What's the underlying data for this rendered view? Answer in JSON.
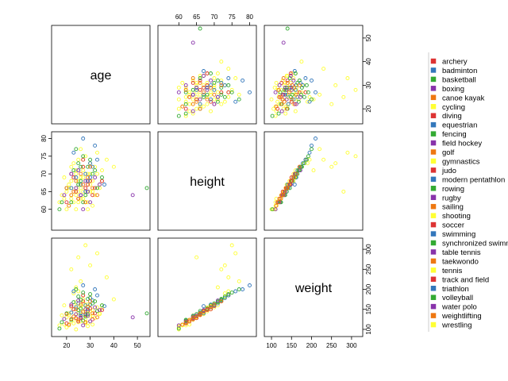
{
  "chart_data": {
    "type": "scatter",
    "variables": [
      "age",
      "height",
      "weight"
    ],
    "ranges": {
      "age": [
        15,
        54
      ],
      "height": [
        55,
        81
      ],
      "weight": [
        90,
        320
      ]
    },
    "ticks": {
      "age": [
        20,
        30,
        40,
        50
      ],
      "height": [
        60,
        65,
        70,
        75,
        80
      ],
      "weight": [
        100,
        150,
        200,
        250,
        300
      ]
    },
    "legend_position": "right",
    "legend": [
      {
        "name": "archery",
        "color": "#dd3333"
      },
      {
        "name": "badminton",
        "color": "#3377bb"
      },
      {
        "name": "basketball",
        "color": "#33aa33"
      },
      {
        "name": "boxing",
        "color": "#8833aa"
      },
      {
        "name": "canoe kayak",
        "color": "#ee7711"
      },
      {
        "name": "cycling",
        "color": "#ffff33"
      },
      {
        "name": "diving",
        "color": "#dd3333"
      },
      {
        "name": "equestrian",
        "color": "#3377bb"
      },
      {
        "name": "fencing",
        "color": "#33aa33"
      },
      {
        "name": "field hockey",
        "color": "#8833aa"
      },
      {
        "name": "golf",
        "color": "#ee7711"
      },
      {
        "name": "gymnastics",
        "color": "#ffff33"
      },
      {
        "name": "judo",
        "color": "#dd3333"
      },
      {
        "name": "modern pentathlon",
        "color": "#3377bb"
      },
      {
        "name": "rowing",
        "color": "#33aa33"
      },
      {
        "name": "rugby",
        "color": "#8833aa"
      },
      {
        "name": "sailing",
        "color": "#ee7711"
      },
      {
        "name": "shooting",
        "color": "#ffff33"
      },
      {
        "name": "soccer",
        "color": "#dd3333"
      },
      {
        "name": "swimming",
        "color": "#3377bb"
      },
      {
        "name": "synchronized swimming",
        "color": "#33aa33"
      },
      {
        "name": "table tennis",
        "color": "#8833aa"
      },
      {
        "name": "taekwondo",
        "color": "#ee7711"
      },
      {
        "name": "tennis",
        "color": "#ffff33"
      },
      {
        "name": "track and field",
        "color": "#dd3333"
      },
      {
        "name": "triathlon",
        "color": "#3377bb"
      },
      {
        "name": "volleyball",
        "color": "#33aa33"
      },
      {
        "name": "water polo",
        "color": "#8833aa"
      },
      {
        "name": "weightlifting",
        "color": "#ee7711"
      },
      {
        "name": "wrestling",
        "color": "#ffff33"
      }
    ],
    "points": [
      {
        "age": 24,
        "height": 64,
        "weight": 125,
        "color": "#ffff33"
      },
      {
        "age": 26,
        "height": 66,
        "weight": 135,
        "color": "#ffff33"
      },
      {
        "age": 28,
        "height": 68,
        "weight": 145,
        "color": "#ffff33"
      },
      {
        "age": 23,
        "height": 62,
        "weight": 115,
        "color": "#ffff33"
      },
      {
        "age": 30,
        "height": 70,
        "weight": 160,
        "color": "#ffff33"
      },
      {
        "age": 22,
        "height": 63,
        "weight": 120,
        "color": "#ffff33"
      },
      {
        "age": 27,
        "height": 65,
        "weight": 130,
        "color": "#ffff33"
      },
      {
        "age": 25,
        "height": 67,
        "weight": 140,
        "color": "#ffff33"
      },
      {
        "age": 29,
        "height": 69,
        "weight": 150,
        "color": "#ffff33"
      },
      {
        "age": 21,
        "height": 61,
        "weight": 110,
        "color": "#ffff33"
      },
      {
        "age": 32,
        "height": 72,
        "weight": 170,
        "color": "#ffff33"
      },
      {
        "age": 24,
        "height": 66,
        "weight": 138,
        "color": "#ffff33"
      },
      {
        "age": 26,
        "height": 64,
        "weight": 128,
        "color": "#ffff33"
      },
      {
        "age": 28,
        "height": 70,
        "weight": 162,
        "color": "#ffff33"
      },
      {
        "age": 20,
        "height": 60,
        "weight": 105,
        "color": "#ffff33"
      },
      {
        "age": 31,
        "height": 68,
        "weight": 148,
        "color": "#ffff33"
      },
      {
        "age": 23,
        "height": 65,
        "weight": 132,
        "color": "#ffff33"
      },
      {
        "age": 27,
        "height": 71,
        "weight": 165,
        "color": "#ffff33"
      },
      {
        "age": 25,
        "height": 62,
        "weight": 118,
        "color": "#ffff33"
      },
      {
        "age": 29,
        "height": 67,
        "weight": 142,
        "color": "#ffff33"
      },
      {
        "age": 22,
        "height": 68,
        "weight": 155,
        "color": "#ffff33"
      },
      {
        "age": 34,
        "height": 66,
        "weight": 140,
        "color": "#ffff33"
      },
      {
        "age": 19,
        "height": 63,
        "weight": 112,
        "color": "#ffff33"
      },
      {
        "age": 30,
        "height": 73,
        "weight": 180,
        "color": "#ffff33"
      },
      {
        "age": 26,
        "height": 69,
        "weight": 158,
        "color": "#ffff33"
      },
      {
        "age": 24,
        "height": 71,
        "weight": 168,
        "color": "#ffff33"
      },
      {
        "age": 28,
        "height": 64,
        "weight": 126,
        "color": "#ffff33"
      },
      {
        "age": 33,
        "height": 70,
        "weight": 155,
        "color": "#ffff33"
      },
      {
        "age": 21,
        "height": 66,
        "weight": 136,
        "color": "#ffff33"
      },
      {
        "age": 27,
        "height": 72,
        "weight": 175,
        "color": "#ffff33"
      },
      {
        "age": 25,
        "height": 74,
        "weight": 195,
        "color": "#ffff33"
      },
      {
        "age": 29,
        "height": 62,
        "weight": 116,
        "color": "#ffff33"
      },
      {
        "age": 23,
        "height": 69,
        "weight": 150,
        "color": "#ffff33"
      },
      {
        "age": 31,
        "height": 65,
        "weight": 134,
        "color": "#ffff33"
      },
      {
        "age": 26,
        "height": 67,
        "weight": 144,
        "color": "#ffff33"
      },
      {
        "age": 35,
        "height": 68,
        "weight": 152,
        "color": "#ffff33"
      },
      {
        "age": 22,
        "height": 64,
        "weight": 124,
        "color": "#ffff33"
      },
      {
        "age": 28,
        "height": 66,
        "weight": 138,
        "color": "#ffff33"
      },
      {
        "age": 24,
        "height": 70,
        "weight": 158,
        "color": "#ffff33"
      },
      {
        "age": 30,
        "height": 67,
        "weight": 146,
        "color": "#ffff33"
      },
      {
        "age": 20,
        "height": 65,
        "weight": 130,
        "color": "#ffff33"
      },
      {
        "age": 27,
        "height": 63,
        "weight": 122,
        "color": "#ffff33"
      },
      {
        "age": 25,
        "height": 65,
        "weight": 280,
        "color": "#ffff33"
      },
      {
        "age": 28,
        "height": 75,
        "weight": 310,
        "color": "#ffff33"
      },
      {
        "age": 33,
        "height": 76,
        "weight": 290,
        "color": "#ffff33"
      },
      {
        "age": 26,
        "height": 77,
        "weight": 220,
        "color": "#ffff33"
      },
      {
        "age": 37,
        "height": 74,
        "weight": 230,
        "color": "#ffff33"
      },
      {
        "age": 22,
        "height": 72,
        "weight": 250,
        "color": "#ffff33"
      },
      {
        "age": 30,
        "height": 73,
        "weight": 260,
        "color": "#ffff33"
      },
      {
        "age": 24,
        "height": 71,
        "weight": 205,
        "color": "#ffff33"
      },
      {
        "age": 40,
        "height": 72,
        "weight": 175,
        "color": "#ffff33"
      },
      {
        "age": 18,
        "height": 64,
        "weight": 135,
        "color": "#ffff33"
      },
      {
        "age": 29,
        "height": 60,
        "weight": 108,
        "color": "#ffff33"
      },
      {
        "age": 31,
        "height": 61,
        "weight": 112,
        "color": "#ffff33"
      },
      {
        "age": 19,
        "height": 69,
        "weight": 160,
        "color": "#ffff33"
      },
      {
        "age": 27,
        "height": 74,
        "weight": 185,
        "color": "#ffff33"
      },
      {
        "age": 23,
        "height": 73,
        "weight": 190,
        "color": "#ffff33"
      },
      {
        "age": 35,
        "height": 71,
        "weight": 160,
        "color": "#ffff33"
      },
      {
        "age": 25,
        "height": 68,
        "weight": 148,
        "color": "#ffff33"
      },
      {
        "age": 21,
        "height": 67,
        "weight": 140,
        "color": "#ffff33"
      },
      {
        "age": 28,
        "height": 62,
        "weight": 116,
        "color": "#ffff33"
      },
      {
        "age": 32,
        "height": 64,
        "weight": 128,
        "color": "#ffff33"
      },
      {
        "age": 24,
        "height": 60,
        "weight": 100,
        "color": "#ffff33"
      },
      {
        "age": 26,
        "height": 63,
        "weight": 120,
        "color": "#ffff33"
      },
      {
        "age": 30,
        "height": 65,
        "weight": 132,
        "color": "#ffff33"
      },
      {
        "age": 22,
        "height": 66,
        "weight": 142,
        "color": "#ffff33"
      },
      {
        "age": 34,
        "height": 67,
        "weight": 138,
        "color": "#ffff33"
      },
      {
        "age": 27,
        "height": 69,
        "weight": 154,
        "color": "#ffff33"
      },
      {
        "age": 29,
        "height": 70,
        "weight": 162,
        "color": "#ffff33"
      },
      {
        "age": 17,
        "height": 62,
        "weight": 110,
        "color": "#ffff33"
      },
      {
        "age": 28,
        "height": 66,
        "weight": 136,
        "color": "#dd3333"
      },
      {
        "age": 26,
        "height": 64,
        "weight": 130,
        "color": "#dd3333"
      },
      {
        "age": 30,
        "height": 68,
        "weight": 152,
        "color": "#dd3333"
      },
      {
        "age": 24,
        "height": 65,
        "weight": 128,
        "color": "#dd3333"
      },
      {
        "age": 32,
        "height": 66,
        "weight": 140,
        "color": "#dd3333"
      },
      {
        "age": 22,
        "height": 70,
        "weight": 158,
        "color": "#dd3333"
      },
      {
        "age": 27,
        "height": 72,
        "weight": 170,
        "color": "#dd3333"
      },
      {
        "age": 25,
        "height": 63,
        "weight": 120,
        "color": "#dd3333"
      },
      {
        "age": 29,
        "height": 67,
        "weight": 146,
        "color": "#dd3333"
      },
      {
        "age": 23,
        "height": 69,
        "weight": 150,
        "color": "#dd3333"
      },
      {
        "age": 31,
        "height": 64,
        "weight": 125,
        "color": "#dd3333"
      },
      {
        "age": 35,
        "height": 68,
        "weight": 148,
        "color": "#dd3333"
      },
      {
        "age": 20,
        "height": 62,
        "weight": 115,
        "color": "#dd3333"
      },
      {
        "age": 27,
        "height": 74,
        "weight": 185,
        "color": "#dd3333"
      },
      {
        "age": 26,
        "height": 67,
        "weight": 140,
        "color": "#3377bb"
      },
      {
        "age": 28,
        "height": 70,
        "weight": 160,
        "color": "#3377bb"
      },
      {
        "age": 30,
        "height": 73,
        "weight": 178,
        "color": "#3377bb"
      },
      {
        "age": 24,
        "height": 69,
        "weight": 155,
        "color": "#3377bb"
      },
      {
        "age": 32,
        "height": 78,
        "weight": 200,
        "color": "#3377bb"
      },
      {
        "age": 27,
        "height": 80,
        "weight": 210,
        "color": "#3377bb"
      },
      {
        "age": 25,
        "height": 71,
        "weight": 165,
        "color": "#3377bb"
      },
      {
        "age": 29,
        "height": 68,
        "weight": 150,
        "color": "#3377bb"
      },
      {
        "age": 33,
        "height": 74,
        "weight": 185,
        "color": "#3377bb"
      },
      {
        "age": 22,
        "height": 66,
        "weight": 142,
        "color": "#3377bb"
      },
      {
        "age": 31,
        "height": 72,
        "weight": 172,
        "color": "#3377bb"
      },
      {
        "age": 26,
        "height": 64,
        "weight": 134,
        "color": "#3377bb"
      },
      {
        "age": 36,
        "height": 67,
        "weight": 158,
        "color": "#3377bb"
      },
      {
        "age": 23,
        "height": 76,
        "weight": 195,
        "color": "#3377bb"
      },
      {
        "age": 28,
        "height": 65,
        "weight": 138,
        "color": "#3377bb"
      },
      {
        "age": 30,
        "height": 69,
        "weight": 162,
        "color": "#3377bb"
      },
      {
        "age": 25,
        "height": 73,
        "weight": 182,
        "color": "#33aa33"
      },
      {
        "age": 27,
        "height": 75,
        "weight": 192,
        "color": "#33aa33"
      },
      {
        "age": 29,
        "height": 72,
        "weight": 176,
        "color": "#33aa33"
      },
      {
        "age": 31,
        "height": 70,
        "weight": 165,
        "color": "#33aa33"
      },
      {
        "age": 24,
        "height": 77,
        "weight": 200,
        "color": "#33aa33"
      },
      {
        "age": 26,
        "height": 68,
        "weight": 152,
        "color": "#33aa33"
      },
      {
        "age": 33,
        "height": 66,
        "weight": 146,
        "color": "#33aa33"
      },
      {
        "age": 28,
        "height": 64,
        "weight": 132,
        "color": "#33aa33"
      },
      {
        "age": 22,
        "height": 62,
        "weight": 124,
        "color": "#33aa33"
      },
      {
        "age": 30,
        "height": 74,
        "weight": 188,
        "color": "#33aa33"
      },
      {
        "age": 20,
        "height": 66,
        "weight": 140,
        "color": "#33aa33"
      },
      {
        "age": 35,
        "height": 69,
        "weight": 160,
        "color": "#33aa33"
      },
      {
        "age": 17,
        "height": 60,
        "weight": 102,
        "color": "#33aa33"
      },
      {
        "age": 25,
        "height": 67,
        "weight": 148,
        "color": "#33aa33"
      },
      {
        "age": 27,
        "height": 62,
        "weight": 122,
        "color": "#33aa33"
      },
      {
        "age": 29,
        "height": 65,
        "weight": 138,
        "color": "#33aa33"
      },
      {
        "age": 23,
        "height": 71,
        "weight": 168,
        "color": "#33aa33"
      },
      {
        "age": 32,
        "height": 71,
        "weight": 170,
        "color": "#33aa33"
      },
      {
        "age": 26,
        "height": 72,
        "weight": 174,
        "color": "#33aa33"
      },
      {
        "age": 18,
        "height": 62,
        "weight": 118,
        "color": "#33aa33"
      },
      {
        "age": 54,
        "height": 66,
        "weight": 140,
        "color": "#33aa33"
      },
      {
        "age": 26,
        "height": 64,
        "weight": 128,
        "color": "#8833aa"
      },
      {
        "age": 28,
        "height": 68,
        "weight": 150,
        "color": "#8833aa"
      },
      {
        "age": 24,
        "height": 66,
        "weight": 138,
        "color": "#8833aa"
      },
      {
        "age": 30,
        "height": 62,
        "weight": 120,
        "color": "#8833aa"
      },
      {
        "age": 22,
        "height": 70,
        "weight": 162,
        "color": "#8833aa"
      },
      {
        "age": 32,
        "height": 69,
        "weight": 155,
        "color": "#8833aa"
      },
      {
        "age": 19,
        "height": 64,
        "weight": 126,
        "color": "#8833aa"
      },
      {
        "age": 34,
        "height": 67,
        "weight": 148,
        "color": "#8833aa"
      },
      {
        "age": 25,
        "height": 71,
        "weight": 172,
        "color": "#8833aa"
      },
      {
        "age": 48,
        "height": 64,
        "weight": 130,
        "color": "#8833aa"
      },
      {
        "age": 27,
        "height": 60,
        "weight": 110,
        "color": "#8833aa"
      },
      {
        "age": 29,
        "height": 65,
        "weight": 134,
        "color": "#8833aa"
      },
      {
        "age": 25,
        "height": 63,
        "weight": 124,
        "color": "#ee7711"
      },
      {
        "age": 27,
        "height": 67,
        "weight": 144,
        "color": "#ee7711"
      },
      {
        "age": 23,
        "height": 65,
        "weight": 132,
        "color": "#ee7711"
      },
      {
        "age": 29,
        "height": 69,
        "weight": 156,
        "color": "#ee7711"
      },
      {
        "age": 31,
        "height": 66,
        "weight": 140,
        "color": "#ee7711"
      },
      {
        "age": 21,
        "height": 61,
        "weight": 112,
        "color": "#ee7711"
      },
      {
        "age": 26,
        "height": 70,
        "weight": 162,
        "color": "#ee7711"
      },
      {
        "age": 33,
        "height": 64,
        "weight": 130,
        "color": "#ee7711"
      },
      {
        "age": 24,
        "height": 68,
        "weight": 150,
        "color": "#ee7711"
      },
      {
        "age": 28,
        "height": 62,
        "weight": 118,
        "color": "#ee7711"
      },
      {
        "age": 20,
        "height": 66,
        "weight": 138,
        "color": "#ee7711"
      },
      {
        "age": 30,
        "height": 72,
        "weight": 170,
        "color": "#ee7711"
      },
      {
        "age": 22,
        "height": 64,
        "weight": 126,
        "color": "#ee7711"
      }
    ]
  }
}
